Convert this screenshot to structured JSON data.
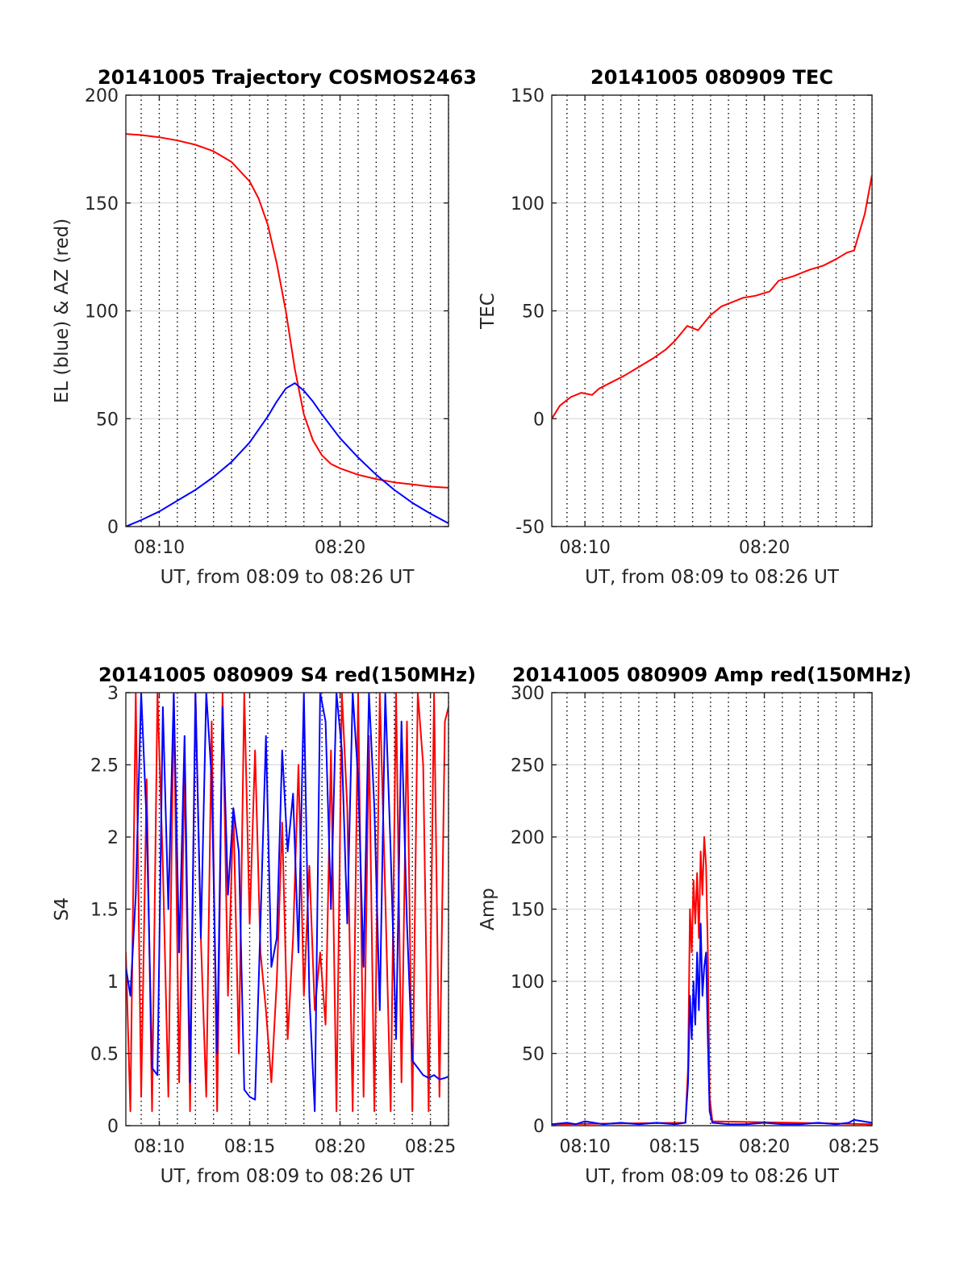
{
  "chart_data": [
    {
      "type": "line",
      "title": "20141005 Trajectory COSMOS2463",
      "xlabel": "UT, from 08:09 to 08:26 UT",
      "ylabel": "EL (blue) & AZ (red)",
      "xlim": [
        8.15,
        26
      ],
      "ylim": [
        0,
        200
      ],
      "yticks": [
        0,
        50,
        100,
        150,
        200
      ],
      "xticks": [
        {
          "v": 10,
          "label": "08:10"
        },
        {
          "v": 20,
          "label": "08:20"
        }
      ],
      "grid": true,
      "series": [
        {
          "color": "#ff0000",
          "x": [
            8.15,
            9,
            10,
            11,
            12,
            13,
            14,
            15,
            15.5,
            16,
            16.5,
            17,
            17.5,
            18,
            18.5,
            19,
            19.5,
            20,
            21,
            22,
            23,
            24,
            25,
            26
          ],
          "y": [
            182,
            181.5,
            180.5,
            179,
            177,
            174,
            169,
            160,
            152,
            140,
            122,
            100,
            73,
            52,
            40,
            33,
            29,
            27,
            24,
            22,
            20.5,
            19.5,
            18.5,
            18
          ]
        },
        {
          "color": "#0000ff",
          "x": [
            8.15,
            9,
            10,
            11,
            12,
            13,
            14,
            15,
            16,
            16.5,
            17,
            17.5,
            18,
            18.5,
            19,
            20,
            21,
            22,
            23,
            24,
            25,
            26
          ],
          "y": [
            0,
            3,
            7,
            12,
            17,
            23,
            30,
            39,
            51,
            58,
            64,
            66.5,
            63,
            58,
            52,
            41,
            32,
            24,
            17,
            11,
            6,
            1.5
          ]
        }
      ]
    },
    {
      "type": "line",
      "title": "20141005 080909 TEC",
      "xlabel": "UT, from 08:09 to 08:26 UT",
      "ylabel": "TEC",
      "xlim": [
        8.15,
        26
      ],
      "ylim": [
        -50,
        150
      ],
      "yticks": [
        -50,
        0,
        50,
        100,
        150
      ],
      "xticks": [
        {
          "v": 10,
          "label": "08:10"
        },
        {
          "v": 20,
          "label": "08:20"
        }
      ],
      "grid": true,
      "series": [
        {
          "color": "#ff0000",
          "x": [
            8.15,
            8.6,
            9.2,
            9.8,
            10.4,
            10.8,
            11.5,
            12.2,
            13,
            13.8,
            14.5,
            15,
            15.7,
            16.3,
            17,
            17.6,
            18.2,
            18.8,
            19.5,
            20.3,
            20.8,
            21.6,
            22.5,
            23.3,
            24,
            24.6,
            25,
            25.6,
            26
          ],
          "y": [
            0,
            6,
            10,
            12,
            11,
            14,
            17,
            20,
            24,
            28,
            32,
            36,
            43,
            41,
            48,
            52,
            54,
            56,
            57,
            59,
            64,
            66,
            69,
            71,
            74,
            77,
            78,
            95,
            113
          ]
        }
      ]
    },
    {
      "type": "line",
      "title": "20141005 080909 S4 red(150MHz)",
      "xlabel": "UT, from 08:09 to 08:26 UT",
      "ylabel": "S4",
      "xlim": [
        8.15,
        26
      ],
      "ylim": [
        0,
        3
      ],
      "yticks": [
        0,
        0.5,
        1,
        1.5,
        2,
        2.5,
        3
      ],
      "xticks": [
        {
          "v": 10,
          "label": "08:10"
        },
        {
          "v": 15,
          "label": "08:15"
        },
        {
          "v": 20,
          "label": "08:20"
        },
        {
          "v": 25,
          "label": "08:25"
        }
      ],
      "grid": true,
      "series": [
        {
          "color": "#ff0000",
          "x": [
            8.15,
            8.4,
            8.7,
            9,
            9.3,
            9.6,
            9.9,
            10.2,
            10.5,
            10.8,
            11.1,
            11.4,
            11.7,
            12,
            12.3,
            12.6,
            12.9,
            13.2,
            13.5,
            13.8,
            14.1,
            14.4,
            14.7,
            15,
            15.3,
            15.6,
            15.9,
            16.2,
            16.5,
            16.8,
            17.1,
            17.4,
            17.7,
            18,
            18.3,
            18.6,
            18.9,
            19.2,
            19.5,
            19.8,
            20.1,
            20.4,
            20.7,
            21,
            21.3,
            21.6,
            21.9,
            22.2,
            22.5,
            22.8,
            23.1,
            23.4,
            23.7,
            24,
            24.3,
            24.6,
            24.9,
            25.2,
            25.5,
            25.8,
            26
          ],
          "y": [
            1.2,
            0.1,
            3,
            0.2,
            2.4,
            0.1,
            3,
            1.8,
            0.2,
            3,
            0.3,
            2.5,
            0.1,
            3,
            1.3,
            0.2,
            2.8,
            0.1,
            3,
            0.9,
            2.2,
            0.5,
            3,
            1.4,
            2.6,
            1.2,
            0.8,
            0.3,
            1,
            2.1,
            0.6,
            1.3,
            2.5,
            0.9,
            1.8,
            0.8,
            1.2,
            0.7,
            2.6,
            0.1,
            3,
            2.2,
            0.1,
            3,
            0.2,
            2.7,
            0.1,
            3,
            1.6,
            0.1,
            3,
            0.3,
            2.8,
            0.1,
            3,
            2.5,
            0.1,
            3,
            0.2,
            2.8,
            2.9
          ]
        },
        {
          "color": "#0000ff",
          "x": [
            8.15,
            8.4,
            8.7,
            9,
            9.3,
            9.6,
            9.9,
            10.2,
            10.5,
            10.8,
            11.1,
            11.4,
            11.7,
            12,
            12.3,
            12.6,
            12.9,
            13.2,
            13.5,
            13.8,
            14.1,
            14.4,
            14.7,
            15,
            15.3,
            15.6,
            15.9,
            16.2,
            16.5,
            16.8,
            17.1,
            17.4,
            17.7,
            18,
            18.3,
            18.6,
            18.9,
            19.2,
            19.5,
            19.8,
            20.1,
            20.4,
            20.7,
            21,
            21.3,
            21.6,
            21.9,
            22.2,
            22.5,
            22.8,
            23.1,
            23.4,
            23.7,
            24,
            24.3,
            24.6,
            24.9,
            25.2,
            25.5,
            25.8,
            26
          ],
          "y": [
            1.1,
            0.9,
            1.6,
            3,
            2.1,
            0.4,
            0.35,
            2.9,
            1.5,
            3,
            1.2,
            2.7,
            0.3,
            3,
            1.3,
            3,
            2.4,
            0.5,
            2.9,
            1.6,
            2.2,
            1.9,
            0.25,
            0.2,
            0.18,
            1.4,
            2.7,
            1.1,
            1.3,
            2.6,
            1.9,
            2.3,
            1.2,
            3,
            0.9,
            0.1,
            3,
            2.8,
            1.5,
            3,
            2.6,
            1.4,
            3,
            2.4,
            1.1,
            3,
            2.2,
            0.8,
            3,
            1.9,
            0.6,
            2.8,
            1.4,
            0.45,
            0.4,
            0.35,
            0.33,
            0.35,
            0.32,
            0.33,
            0.34
          ]
        }
      ]
    },
    {
      "type": "line",
      "title": "20141005 080909 Amp red(150MHz)",
      "xlabel": "UT, from 08:09 to 08:26 UT",
      "ylabel": "Amp",
      "xlim": [
        8.15,
        26
      ],
      "ylim": [
        0,
        300
      ],
      "yticks": [
        0,
        50,
        100,
        150,
        200,
        250,
        300
      ],
      "xticks": [
        {
          "v": 10,
          "label": "08:10"
        },
        {
          "v": 15,
          "label": "08:15"
        },
        {
          "v": 20,
          "label": "08:20"
        },
        {
          "v": 25,
          "label": "08:25"
        }
      ],
      "grid": true,
      "series": [
        {
          "color": "#ff0000",
          "x": [
            8.15,
            15.6,
            15.75,
            15.85,
            15.95,
            16.05,
            16.15,
            16.25,
            16.35,
            16.45,
            16.55,
            16.65,
            16.75,
            16.85,
            16.95,
            17.1,
            26
          ],
          "y": [
            1,
            2,
            40,
            150,
            120,
            170,
            140,
            175,
            130,
            190,
            160,
            200,
            180,
            120,
            20,
            3,
            1
          ]
        },
        {
          "color": "#0000ff",
          "x": [
            8.15,
            9,
            9.5,
            10,
            10.5,
            11,
            12,
            13,
            14,
            15,
            15.6,
            15.75,
            15.85,
            15.95,
            16.05,
            16.15,
            16.25,
            16.35,
            16.45,
            16.55,
            16.65,
            16.75,
            16.85,
            16.95,
            17.1,
            18,
            19,
            20,
            21,
            22,
            23,
            24,
            24.7,
            25,
            25.5,
            26
          ],
          "y": [
            1,
            2,
            1,
            3,
            2,
            1,
            2,
            1,
            2,
            1,
            2,
            30,
            90,
            60,
            100,
            70,
            120,
            80,
            140,
            90,
            110,
            120,
            60,
            10,
            2,
            1,
            1,
            2,
            1,
            1,
            2,
            1,
            2,
            4,
            3,
            2
          ]
        }
      ]
    }
  ]
}
